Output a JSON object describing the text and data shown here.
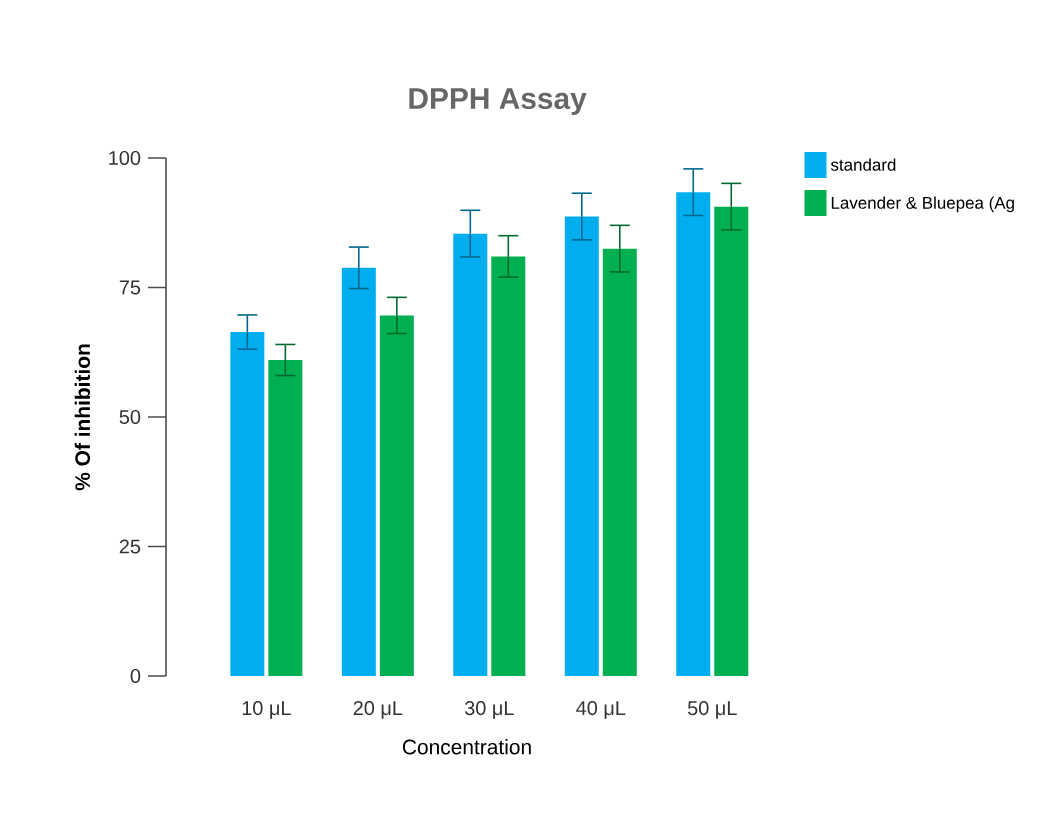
{
  "chart_data": {
    "type": "bar",
    "title": "DPPH Assay",
    "xlabel": "Concentration",
    "ylabel": "% Of inhibition",
    "categories": [
      "10 μL",
      "20 μL",
      "30 μL",
      "40 μL",
      "50 μL"
    ],
    "series": [
      {
        "name": "standard",
        "color": "#00aeef",
        "values": [
          66.4,
          78.8,
          85.4,
          88.7,
          93.4
        ],
        "errors": [
          3.3,
          4,
          4.5,
          4.5,
          4.5
        ]
      },
      {
        "name": "Lavender & Bluepea  (Ag",
        "color": "#00b050",
        "values": [
          61,
          69.6,
          81,
          82.5,
          90.6
        ],
        "errors": [
          3,
          3.5,
          4,
          4.5,
          4.5
        ]
      }
    ],
    "ylim": [
      0,
      100
    ],
    "yticks": [
      0,
      25,
      50,
      75,
      100
    ],
    "grid": false,
    "legend": "top right"
  }
}
